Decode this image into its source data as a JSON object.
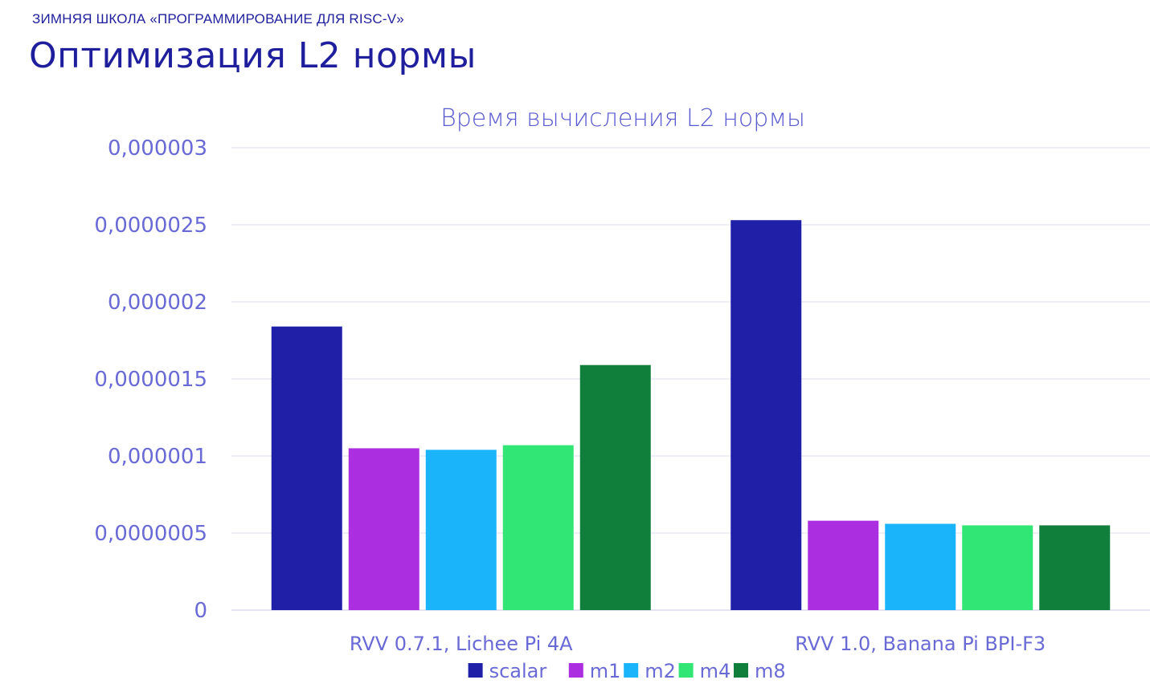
{
  "header": {
    "subtitle": "ЗИМНЯЯ ШКОЛА «ПРОГРАММИРОВАНИЕ ДЛЯ RISC-V»",
    "title": "Оптимизация L2 нормы"
  },
  "chart_data": {
    "type": "bar",
    "title": "Время вычисления L2 нормы",
    "xlabel": "",
    "ylabel": "",
    "ylim": [
      0,
      3e-06
    ],
    "yticks": [
      0,
      5e-07,
      1e-06,
      1.5e-06,
      2e-06,
      2.5e-06,
      3e-06
    ],
    "ytick_labels": [
      "0",
      "0,0000005",
      "0,000001",
      "0,0000015",
      "0,000002",
      "0,0000025",
      "0,000003"
    ],
    "grid": true,
    "legend": "bottom",
    "categories": [
      "RVV 0.7.1, Lichee Pi 4A",
      "RVV 1.0, Banana Pi BPI-F3"
    ],
    "series": [
      {
        "name": "scalar",
        "color": "#1f1fa8",
        "values": [
          1.84e-06,
          2.53e-06
        ]
      },
      {
        "name": "m1",
        "color": "#ab2ee0",
        "values": [
          1.05e-06,
          5.8e-07
        ]
      },
      {
        "name": "m2",
        "color": "#1ab4fb",
        "values": [
          1.04e-06,
          5.6e-07
        ]
      },
      {
        "name": "m4",
        "color": "#31e674",
        "values": [
          1.07e-06,
          5.5e-07
        ]
      },
      {
        "name": "m8",
        "color": "#0f7f3b",
        "values": [
          1.59e-06,
          5.5e-07
        ]
      }
    ]
  }
}
